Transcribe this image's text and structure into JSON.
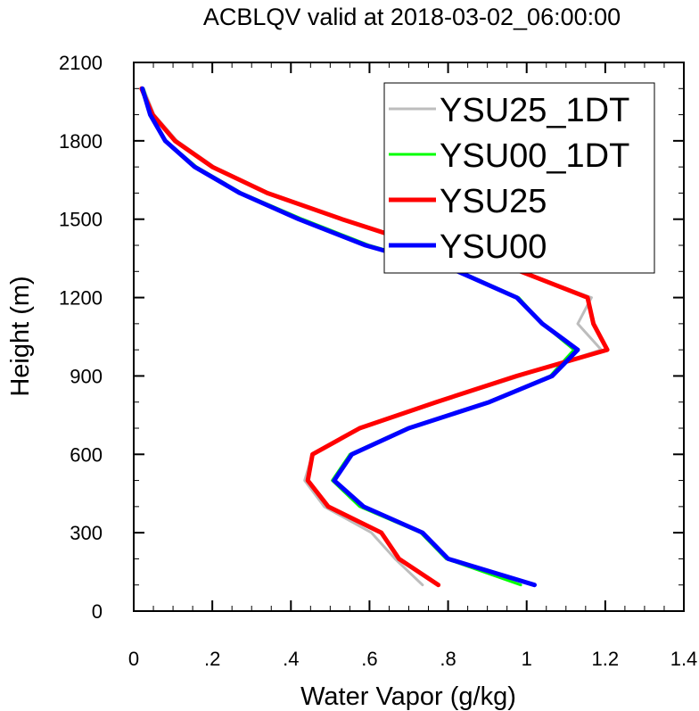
{
  "chart_data": {
    "type": "line",
    "title": "ACBLQV valid at 2018-03-02_06:00:00",
    "xlabel": "Water Vapor (g/kg)",
    "ylabel": "Height (m)",
    "xlim": [
      0,
      1.4
    ],
    "ylim": [
      0,
      2100
    ],
    "xticks": [
      0,
      0.2,
      0.4,
      0.6,
      0.8,
      1.0,
      1.2,
      1.4
    ],
    "xtick_labels": [
      "0",
      ".2",
      ".4",
      ".6",
      ".8",
      "1",
      "1.2",
      "1.4"
    ],
    "yticks": [
      0,
      300,
      600,
      900,
      1200,
      1500,
      1800,
      2100
    ],
    "ytick_labels": [
      "0",
      "300",
      "600",
      "900",
      "1200",
      "1500",
      "1800",
      "2100"
    ],
    "legend_position": "top-right",
    "heights": [
      100,
      200,
      300,
      400,
      500,
      600,
      700,
      800,
      900,
      1000,
      1100,
      1200,
      1300,
      1400,
      1500,
      1600,
      1700,
      1800,
      1900,
      2000
    ],
    "series": [
      {
        "name": "YSU25_1DT",
        "color": "#bdbdbd",
        "x": [
          0.735,
          0.665,
          0.605,
          0.485,
          0.435,
          0.455,
          0.58,
          0.775,
          0.985,
          1.19,
          1.13,
          1.165,
          0.985,
          0.745,
          0.535,
          0.345,
          0.205,
          0.11,
          0.052,
          0.025
        ],
        "y": [
          100,
          200,
          300,
          400,
          500,
          600,
          700,
          800,
          900,
          1000,
          1100,
          1200,
          1300,
          1400,
          1500,
          1600,
          1700,
          1800,
          1900,
          2000
        ]
      },
      {
        "name": "YSU00_1DT",
        "color": "#00ff00",
        "x": [
          0.985,
          0.795,
          0.73,
          0.575,
          0.505,
          0.55,
          0.695,
          0.9,
          1.06,
          1.12,
          1.04,
          0.98,
          0.83,
          0.6,
          0.43,
          0.275,
          0.16,
          0.082,
          0.045,
          0.025
        ],
        "y": [
          100,
          200,
          300,
          400,
          500,
          600,
          700,
          800,
          900,
          1000,
          1100,
          1200,
          1300,
          1400,
          1500,
          1600,
          1700,
          1800,
          1900,
          2000
        ]
      },
      {
        "name": "YSU25",
        "color": "#ff0000",
        "x": [
          0.775,
          0.675,
          0.63,
          0.495,
          0.443,
          0.455,
          0.575,
          0.77,
          0.975,
          1.205,
          1.17,
          1.155,
          0.985,
          0.735,
          0.53,
          0.34,
          0.2,
          0.105,
          0.048,
          0.02
        ],
        "y": [
          100,
          200,
          300,
          400,
          500,
          600,
          700,
          800,
          900,
          1000,
          1100,
          1200,
          1300,
          1400,
          1500,
          1600,
          1700,
          1800,
          1900,
          2000
        ]
      },
      {
        "name": "YSU00",
        "color": "#0000ff",
        "x": [
          1.02,
          0.8,
          0.735,
          0.585,
          0.51,
          0.555,
          0.7,
          0.905,
          1.065,
          1.13,
          1.04,
          0.975,
          0.825,
          0.59,
          0.42,
          0.27,
          0.155,
          0.08,
          0.042,
          0.022
        ],
        "y": [
          100,
          200,
          300,
          400,
          500,
          600,
          700,
          800,
          900,
          1000,
          1100,
          1200,
          1300,
          1400,
          1500,
          1600,
          1700,
          1800,
          1900,
          2000
        ]
      }
    ]
  }
}
